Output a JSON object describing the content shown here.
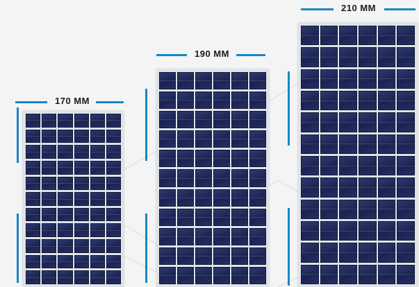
{
  "panels": [
    {
      "id": "small",
      "width_label": "170 MM",
      "rows": 11,
      "cols": 6
    },
    {
      "id": "medium",
      "width_label": "190 MM",
      "rows": 11,
      "cols": 6
    },
    {
      "id": "large",
      "width_label": "210 MM",
      "rows": 12,
      "cols": 6
    }
  ],
  "colors": {
    "accent": "#1487c8",
    "cell": "#1c2352",
    "frame": "#dfe3ea",
    "background": "#f4f4f4"
  }
}
